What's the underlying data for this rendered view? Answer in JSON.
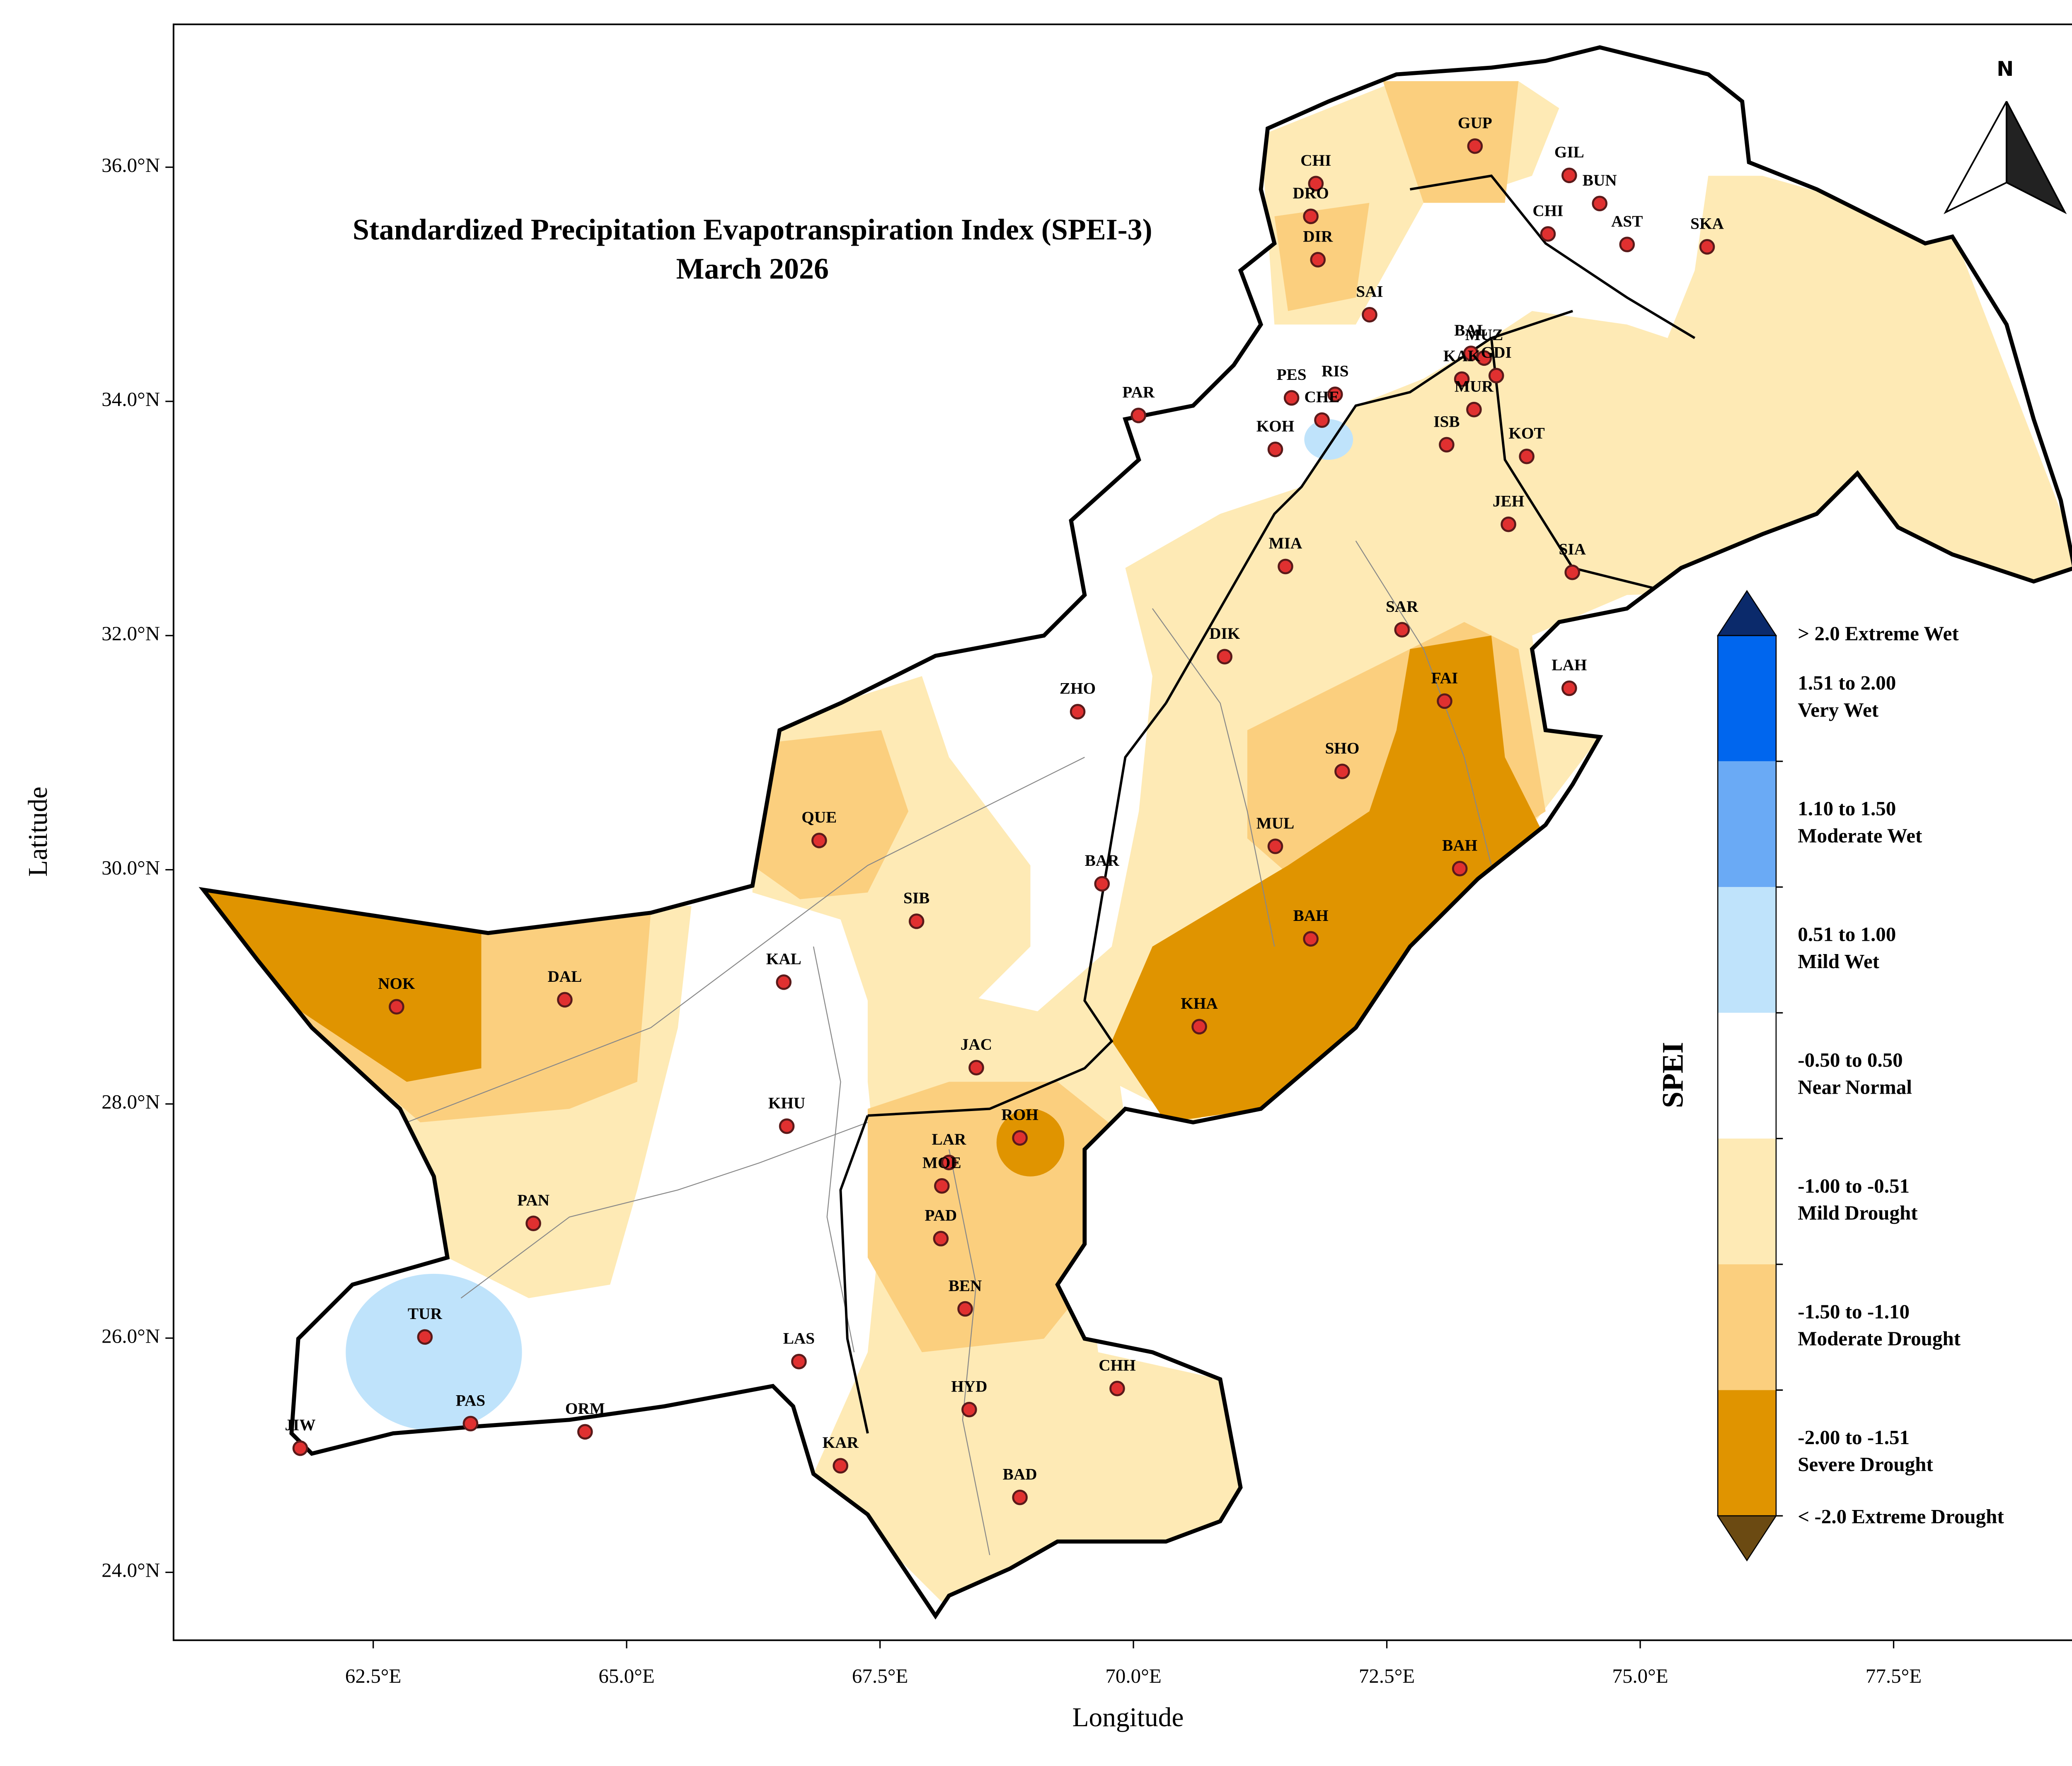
{
  "header": {
    "title": "Standardized Precipitation Evapotranspiration Index (SPEI-3)",
    "subtitle": "March 2026"
  },
  "map": {
    "xlabel": "Longitude",
    "ylabel": "Latitude",
    "xlim": [
      60.53,
      79.35
    ],
    "ylim": [
      23.42,
      37.22
    ],
    "xticks": [
      {
        "value": 62.5,
        "label": "62.5°E"
      },
      {
        "value": 65.0,
        "label": "65.0°E"
      },
      {
        "value": 67.5,
        "label": "67.5°E"
      },
      {
        "value": 70.0,
        "label": "70.0°E"
      },
      {
        "value": 72.5,
        "label": "72.5°E"
      },
      {
        "value": 75.0,
        "label": "75.0°E"
      },
      {
        "value": 77.5,
        "label": "77.5°E"
      }
    ],
    "yticks": [
      {
        "value": 24,
        "label": "24.0°N"
      },
      {
        "value": 26,
        "label": "26.0°N"
      },
      {
        "value": 28,
        "label": "28.0°N"
      },
      {
        "value": 30,
        "label": "30.0°N"
      },
      {
        "value": 32,
        "label": "32.0°N"
      },
      {
        "value": 34,
        "label": "34.0°N"
      },
      {
        "value": 36,
        "label": "36.0°N"
      }
    ],
    "north_label": "N",
    "stations": [
      {
        "name": "GUP",
        "lon": 73.37,
        "lat": 36.18
      },
      {
        "name": "CHI",
        "lon": 71.8,
        "lat": 35.86
      },
      {
        "name": "DRO",
        "lon": 71.75,
        "lat": 35.58
      },
      {
        "name": "DIR",
        "lon": 71.82,
        "lat": 35.21
      },
      {
        "name": "GIL",
        "lon": 74.3,
        "lat": 35.93
      },
      {
        "name": "BUN",
        "lon": 74.6,
        "lat": 35.69
      },
      {
        "name": "CHI",
        "lon": 74.09,
        "lat": 35.43
      },
      {
        "name": "AST",
        "lon": 74.87,
        "lat": 35.34
      },
      {
        "name": "SKA",
        "lon": 75.66,
        "lat": 35.32
      },
      {
        "name": "SAI",
        "lon": 72.33,
        "lat": 34.74
      },
      {
        "name": "BAL",
        "lon": 73.33,
        "lat": 34.41
      },
      {
        "name": "MUZ",
        "lon": 73.46,
        "lat": 34.37
      },
      {
        "name": "GDI",
        "lon": 73.58,
        "lat": 34.22
      },
      {
        "name": "KAK",
        "lon": 73.24,
        "lat": 34.19
      },
      {
        "name": "MUR",
        "lon": 73.36,
        "lat": 33.93
      },
      {
        "name": "ISB",
        "lon": 73.09,
        "lat": 33.63
      },
      {
        "name": "KOT",
        "lon": 73.88,
        "lat": 33.53
      },
      {
        "name": "PES",
        "lon": 71.56,
        "lat": 34.03
      },
      {
        "name": "RIS",
        "lon": 71.99,
        "lat": 34.06
      },
      {
        "name": "CHE",
        "lon": 71.86,
        "lat": 33.84
      },
      {
        "name": "KOH",
        "lon": 71.4,
        "lat": 33.59
      },
      {
        "name": "PAR",
        "lon": 70.05,
        "lat": 33.88
      },
      {
        "name": "JEH",
        "lon": 73.7,
        "lat": 32.95
      },
      {
        "name": "SIA",
        "lon": 74.33,
        "lat": 32.54
      },
      {
        "name": "MIA",
        "lon": 71.5,
        "lat": 32.59
      },
      {
        "name": "SAR",
        "lon": 72.65,
        "lat": 32.05
      },
      {
        "name": "DIK",
        "lon": 70.9,
        "lat": 31.82
      },
      {
        "name": "LAH",
        "lon": 74.3,
        "lat": 31.55
      },
      {
        "name": "FAI",
        "lon": 73.07,
        "lat": 31.44
      },
      {
        "name": "ZHO",
        "lon": 69.45,
        "lat": 31.35
      },
      {
        "name": "SHO",
        "lon": 72.06,
        "lat": 30.84
      },
      {
        "name": "QUE",
        "lon": 66.9,
        "lat": 30.25
      },
      {
        "name": "MUL",
        "lon": 71.4,
        "lat": 30.2
      },
      {
        "name": "BAH",
        "lon": 73.22,
        "lat": 30.01
      },
      {
        "name": "BAR",
        "lon": 69.69,
        "lat": 29.88
      },
      {
        "name": "SIB",
        "lon": 67.86,
        "lat": 29.56
      },
      {
        "name": "BAH",
        "lon": 71.75,
        "lat": 29.41
      },
      {
        "name": "KAL",
        "lon": 66.55,
        "lat": 29.04
      },
      {
        "name": "NOK",
        "lon": 62.73,
        "lat": 28.83
      },
      {
        "name": "DAL",
        "lon": 64.39,
        "lat": 28.89
      },
      {
        "name": "KHA",
        "lon": 70.65,
        "lat": 28.66
      },
      {
        "name": "JAC",
        "lon": 68.45,
        "lat": 28.31
      },
      {
        "name": "KHU",
        "lon": 66.58,
        "lat": 27.81
      },
      {
        "name": "ROH",
        "lon": 68.88,
        "lat": 27.71
      },
      {
        "name": "LAR",
        "lon": 68.18,
        "lat": 27.5
      },
      {
        "name": "MOE",
        "lon": 68.11,
        "lat": 27.3
      },
      {
        "name": "PAD",
        "lon": 68.1,
        "lat": 26.85
      },
      {
        "name": "PAN",
        "lon": 64.08,
        "lat": 26.98
      },
      {
        "name": "BEN",
        "lon": 68.34,
        "lat": 26.25
      },
      {
        "name": "TUR",
        "lon": 63.01,
        "lat": 26.01
      },
      {
        "name": "LAS",
        "lon": 66.7,
        "lat": 25.8
      },
      {
        "name": "CHH",
        "lon": 69.84,
        "lat": 25.57
      },
      {
        "name": "PAS",
        "lon": 63.46,
        "lat": 25.27
      },
      {
        "name": "HYD",
        "lon": 68.38,
        "lat": 25.39
      },
      {
        "name": "ORM",
        "lon": 64.59,
        "lat": 25.2
      },
      {
        "name": "JIW",
        "lon": 61.78,
        "lat": 25.06
      },
      {
        "name": "KAR",
        "lon": 67.11,
        "lat": 24.91
      },
      {
        "name": "BAD",
        "lon": 68.88,
        "lat": 24.64
      }
    ],
    "legend": {
      "title": "SPEI",
      "top": {
        "label": "> 2.0 Extreme Wet",
        "color": "#0b2a6b"
      },
      "entries": [
        {
          "range": "1.51 to 2.00",
          "name": "Very Wet",
          "color": "#0066ee"
        },
        {
          "range": "1.10 to 1.50",
          "name": "Moderate Wet",
          "color": "#6aaaf5"
        },
        {
          "range": "0.51 to 1.00",
          "name": "Mild Wet",
          "color": "#bfe3fb"
        },
        {
          "range": "-0.50 to 0.50",
          "name": "Near Normal",
          "color": "#ffffff"
        },
        {
          "range": "-1.00 to -0.51",
          "name": "Mild Drought",
          "color": "#feeab5"
        },
        {
          "range": "-1.50 to -1.10",
          "name": "Moderate Drought",
          "color": "#fbcf7e"
        },
        {
          "range": "-2.00 to -1.51",
          "name": "Severe Drought",
          "color": "#e09400"
        }
      ],
      "bottom": {
        "label": "< -2.0 Extreme Drought",
        "color": "#6b4a12"
      }
    }
  }
}
